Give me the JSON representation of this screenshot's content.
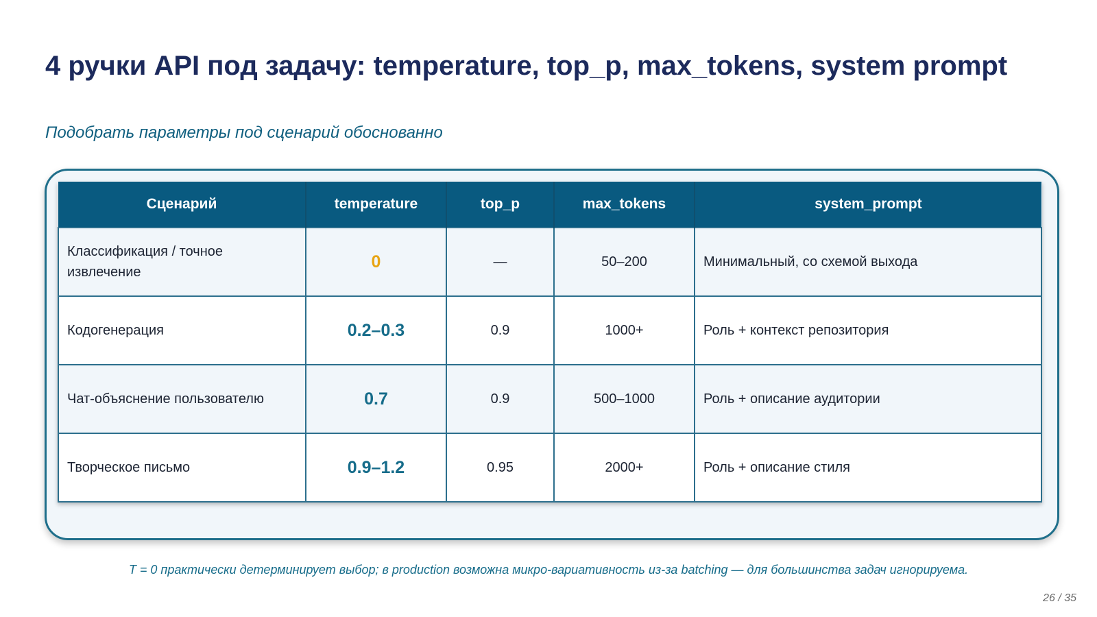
{
  "slide": {
    "title": "4 ручки API под задачу: temperature, top_p, max_tokens, system prompt",
    "subtitle": "Подобрать параметры под сценарий обоснованно",
    "footnote": "T = 0 практически детерминирует выбор; в production возможна микро-вариативность из-за batching — для большинства задач игнорируема.",
    "page_number": "26 / 35"
  },
  "table": {
    "headers": [
      "Сценарий",
      "temperature",
      "top_p",
      "max_tokens",
      "system_prompt"
    ],
    "rows": [
      {
        "scenario": "Классификация / точное извлечение",
        "temperature": "0",
        "top_p": "—",
        "max_tokens": "50–200",
        "system_prompt": "Минимальный, со схемой выхода"
      },
      {
        "scenario": "Кодогенерация",
        "temperature": "0.2–0.3",
        "top_p": "0.9",
        "max_tokens": "1000+",
        "system_prompt": "Роль + контекст репозитория"
      },
      {
        "scenario": "Чат-объяснение пользователю",
        "temperature": "0.7",
        "top_p": "0.9",
        "max_tokens": "500–1000",
        "system_prompt": "Роль + описание аудитории"
      },
      {
        "scenario": "Творческое письмо",
        "temperature": "0.9–1.2",
        "top_p": "0.95",
        "max_tokens": "2000+",
        "system_prompt": "Роль + описание стиля"
      }
    ]
  },
  "colors": {
    "title": "#1c2a5c",
    "accent": "#105f7f",
    "header_bg": "#095a80",
    "highlight": "#e8a515"
  }
}
